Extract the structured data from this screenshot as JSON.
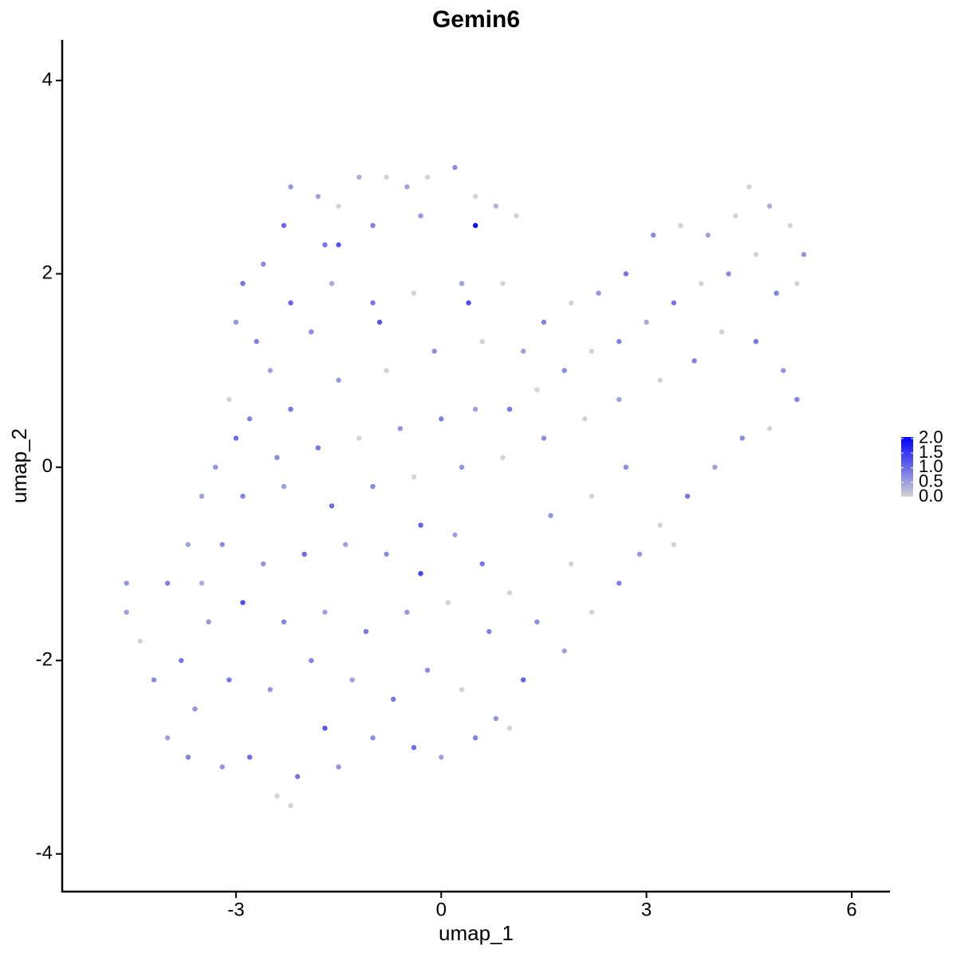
{
  "chart_data": {
    "type": "scatter",
    "title": "Gemin6",
    "x_label": "umap_1",
    "y_label": "umap_2",
    "xlim": [
      -5.54,
      6.56
    ],
    "ylim": [
      -4.39,
      4.42
    ],
    "xticks": [
      -3,
      0,
      3,
      6
    ],
    "yticks": [
      -4,
      -2,
      0,
      2,
      4
    ],
    "color_low": "#d3d3d3",
    "color_high": "#0000ff",
    "colorlim": [
      0,
      2.05
    ],
    "colorticks": [
      {
        "value": 0,
        "label": "0.0"
      },
      {
        "value": 0.5,
        "label": "0.5"
      },
      {
        "value": 1,
        "label": "1.0"
      },
      {
        "value": 1.5,
        "label": "1.5"
      },
      {
        "value": 2,
        "label": "2.0"
      }
    ],
    "x": [
      -2.2,
      -1.8,
      -1.5,
      -1.2,
      -0.8,
      -0.5,
      -0.2,
      0.2,
      0.5,
      0.8,
      1.1,
      0.5,
      -0.3,
      -1.0,
      -1.7,
      -2.3,
      -2.6,
      -2.9,
      -3.0,
      -2.7,
      -2.2,
      -1.6,
      -1.0,
      -0.4,
      0.3,
      0.9,
      0.4,
      -0.9,
      -1.9,
      -2.5,
      -3.1,
      -2.8,
      -2.2,
      -1.5,
      -0.8,
      -0.1,
      0.6,
      1.2,
      1.5,
      1.9,
      2.3,
      2.7,
      3.1,
      3.5,
      3.9,
      4.3,
      4.5,
      4.8,
      5.1,
      5.3,
      5.2,
      4.9,
      4.6,
      4.2,
      3.8,
      3.4,
      3.0,
      2.6,
      2.2,
      1.8,
      1.4,
      1.0,
      0.5,
      0,
      -0.6,
      -1.2,
      -1.8,
      -2.4,
      -3.0,
      -3.3,
      -3.5,
      -2.9,
      -2.3,
      -1.6,
      -1.0,
      -0.4,
      0.3,
      0.9,
      1.5,
      2.1,
      2.6,
      3.2,
      3.7,
      4.1,
      4.6,
      5.0,
      5.2,
      4.8,
      4.4,
      4.0,
      3.6,
      3.2,
      2.9,
      3.4,
      2.6,
      2.2,
      1.8,
      1.4,
      1.0,
      0.6,
      0.2,
      -0.3,
      -0.8,
      -1.4,
      -2.0,
      -2.6,
      -3.2,
      -3.7,
      -4.0,
      -4.6,
      -4.6,
      -4.4,
      -4.2,
      -3.8,
      -3.4,
      -2.9,
      -2.3,
      -1.7,
      -1.1,
      -0.5,
      0.1,
      0.7,
      1.2,
      0.8,
      0.3,
      -0.2,
      -0.7,
      -1.3,
      -1.9,
      -2.5,
      -3.1,
      -3.6,
      -4.0,
      -3.7,
      -3.2,
      -2.8,
      -2.4,
      -2.1,
      -1.5,
      -1.0,
      -0.4,
      0,
      0.5,
      1.0,
      -2.2,
      -1.7,
      -3.5,
      1.6,
      2.2,
      2.7,
      1.9,
      -0.3,
      -1.5
    ],
    "y": [
      2.9,
      2.8,
      2.7,
      3.0,
      3.0,
      2.9,
      3.0,
      3.1,
      2.8,
      2.7,
      2.6,
      2.5,
      2.6,
      2.5,
      2.3,
      2.5,
      2.1,
      1.9,
      1.5,
      1.3,
      1.7,
      1.9,
      1.7,
      1.8,
      1.9,
      1.9,
      1.7,
      1.5,
      1.4,
      1.0,
      0.7,
      0.5,
      0.6,
      0.9,
      1.0,
      1.2,
      1.3,
      1.2,
      1.5,
      1.7,
      1.8,
      2.0,
      2.4,
      2.5,
      2.4,
      2.6,
      2.9,
      2.7,
      2.5,
      2.2,
      1.9,
      1.8,
      2.2,
      2.0,
      1.9,
      1.7,
      1.5,
      1.3,
      1.2,
      1.0,
      0.8,
      0.6,
      0.6,
      0.5,
      0.4,
      0.3,
      0.2,
      0.1,
      0.3,
      0.0,
      -0.3,
      -0.3,
      -0.2,
      -0.4,
      -0.2,
      -0.1,
      0,
      0.1,
      0.3,
      0.5,
      0.7,
      0.9,
      1.1,
      1.4,
      1.3,
      1.0,
      0.7,
      0.4,
      0.3,
      0.0,
      -0.3,
      -0.6,
      -0.9,
      -0.8,
      -1.2,
      -1.5,
      -1.9,
      -1.6,
      -1.3,
      -1.0,
      -0.7,
      -0.6,
      -0.9,
      -0.8,
      -0.9,
      -1.0,
      -0.8,
      -0.8,
      -1.2,
      -1.2,
      -1.5,
      -1.8,
      -2.2,
      -2.0,
      -1.6,
      -1.4,
      -1.6,
      -1.5,
      -1.7,
      -1.5,
      -1.4,
      -1.7,
      -2.2,
      -2.6,
      -2.3,
      -2.1,
      -2.4,
      -2.2,
      -2.0,
      -2.3,
      -2.2,
      -2.5,
      -2.8,
      -3.0,
      -3.1,
      -3.0,
      -3.4,
      -3.2,
      -3.1,
      -2.8,
      -2.9,
      -3.0,
      -2.8,
      -2.7,
      -3.5,
      -2.7,
      -1.2,
      -0.5,
      -0.3,
      0,
      -1.0,
      -1.1,
      2.3
    ],
    "values": [
      0.6,
      0.5,
      0,
      0.4,
      0,
      0.5,
      0,
      0.7,
      0,
      0.3,
      0,
      1.9,
      0.6,
      0.8,
      0.9,
      1.0,
      0.7,
      0.9,
      0.6,
      0.8,
      1.1,
      0.4,
      0.9,
      0,
      0.5,
      0,
      1.3,
      1.2,
      0.7,
      0.5,
      0,
      0.8,
      0.9,
      0.6,
      0,
      0.7,
      0,
      0.5,
      0.8,
      0,
      0.6,
      0.9,
      0.7,
      0,
      0.5,
      0,
      0,
      0.4,
      0,
      0.6,
      0,
      0.8,
      0,
      0.7,
      0,
      0.9,
      0.4,
      0.8,
      0,
      0.7,
      0,
      0.9,
      0.5,
      0.8,
      0.6,
      0,
      0.9,
      0.7,
      1.0,
      0.6,
      0.5,
      0.8,
      0.5,
      1.0,
      0.7,
      0,
      0.6,
      0,
      0.7,
      0,
      0.5,
      0,
      0.8,
      0,
      0.9,
      0.6,
      0.8,
      0,
      0.7,
      0.5,
      0.9,
      0,
      0.6,
      0,
      0.8,
      0,
      0.5,
      0.7,
      0,
      0.9,
      0.5,
      1.1,
      0.7,
      0.5,
      1.0,
      0.6,
      0.7,
      0.5,
      0.8,
      0.6,
      0.5,
      0,
      0.7,
      0.9,
      0.6,
      1.3,
      0.8,
      0.5,
      0.9,
      0.6,
      0,
      0.8,
      1.1,
      0.6,
      0,
      0.7,
      0.9,
      0.5,
      0.8,
      0.6,
      0.9,
      0.6,
      0.5,
      0.8,
      0.6,
      1.0,
      0,
      0.9,
      0.6,
      0.7,
      1.0,
      0.5,
      0.8,
      0,
      0,
      1.2,
      0.4,
      0.6,
      0,
      0.7,
      0,
      1.4,
      1.2
    ]
  }
}
